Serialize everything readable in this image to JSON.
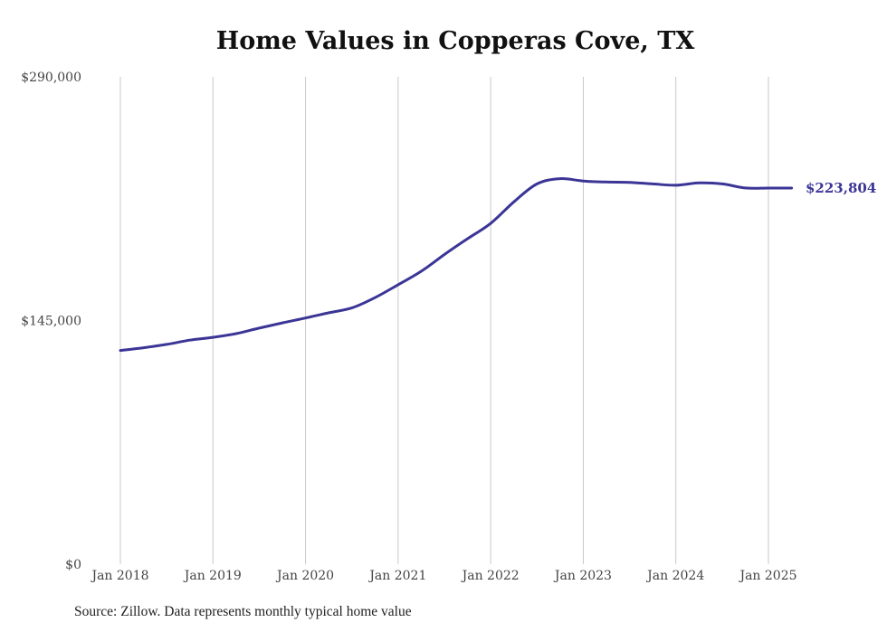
{
  "chart_data": {
    "type": "line",
    "title": "Home Values in Copperas Cove, TX",
    "source": "Source: Zillow. Data represents monthly typical home value",
    "ylim": [
      0,
      290000
    ],
    "yticks": [
      {
        "value": 0,
        "label": "$0"
      },
      {
        "value": 145000,
        "label": "$145,000"
      },
      {
        "value": 290000,
        "label": "$290,000"
      }
    ],
    "xlim": [
      "2018-01",
      "2025-04"
    ],
    "xticks": [
      {
        "date": "2018-01",
        "label": "Jan 2018"
      },
      {
        "date": "2019-01",
        "label": "Jan 2019"
      },
      {
        "date": "2020-01",
        "label": "Jan 2020"
      },
      {
        "date": "2021-01",
        "label": "Jan 2021"
      },
      {
        "date": "2022-01",
        "label": "Jan 2022"
      },
      {
        "date": "2023-01",
        "label": "Jan 2023"
      },
      {
        "date": "2024-01",
        "label": "Jan 2024"
      },
      {
        "date": "2025-01",
        "label": "Jan 2025"
      }
    ],
    "grid": "vertical",
    "color": "#3b3596",
    "end_label": "$223,804",
    "series": [
      {
        "points": [
          [
            "2018-01",
            127200
          ],
          [
            "2018-04",
            128800
          ],
          [
            "2018-07",
            130800
          ],
          [
            "2018-10",
            133300
          ],
          [
            "2019-01",
            135000
          ],
          [
            "2019-04",
            137200
          ],
          [
            "2019-07",
            140500
          ],
          [
            "2019-10",
            143600
          ],
          [
            "2020-01",
            146500
          ],
          [
            "2020-04",
            149600
          ],
          [
            "2020-07",
            152500
          ],
          [
            "2020-10",
            158600
          ],
          [
            "2021-01",
            166300
          ],
          [
            "2021-04",
            174300
          ],
          [
            "2021-07",
            184300
          ],
          [
            "2021-10",
            193700
          ],
          [
            "2022-01",
            202800
          ],
          [
            "2022-04",
            215600
          ],
          [
            "2022-07",
            226300
          ],
          [
            "2022-10",
            229400
          ],
          [
            "2023-01",
            228000
          ],
          [
            "2023-04",
            227400
          ],
          [
            "2023-07",
            227200
          ],
          [
            "2023-10",
            226300
          ],
          [
            "2024-01",
            225500
          ],
          [
            "2024-04",
            226900
          ],
          [
            "2024-07",
            226300
          ],
          [
            "2024-10",
            223900
          ],
          [
            "2025-01",
            223804
          ],
          [
            "2025-04",
            223804
          ]
        ]
      }
    ]
  }
}
